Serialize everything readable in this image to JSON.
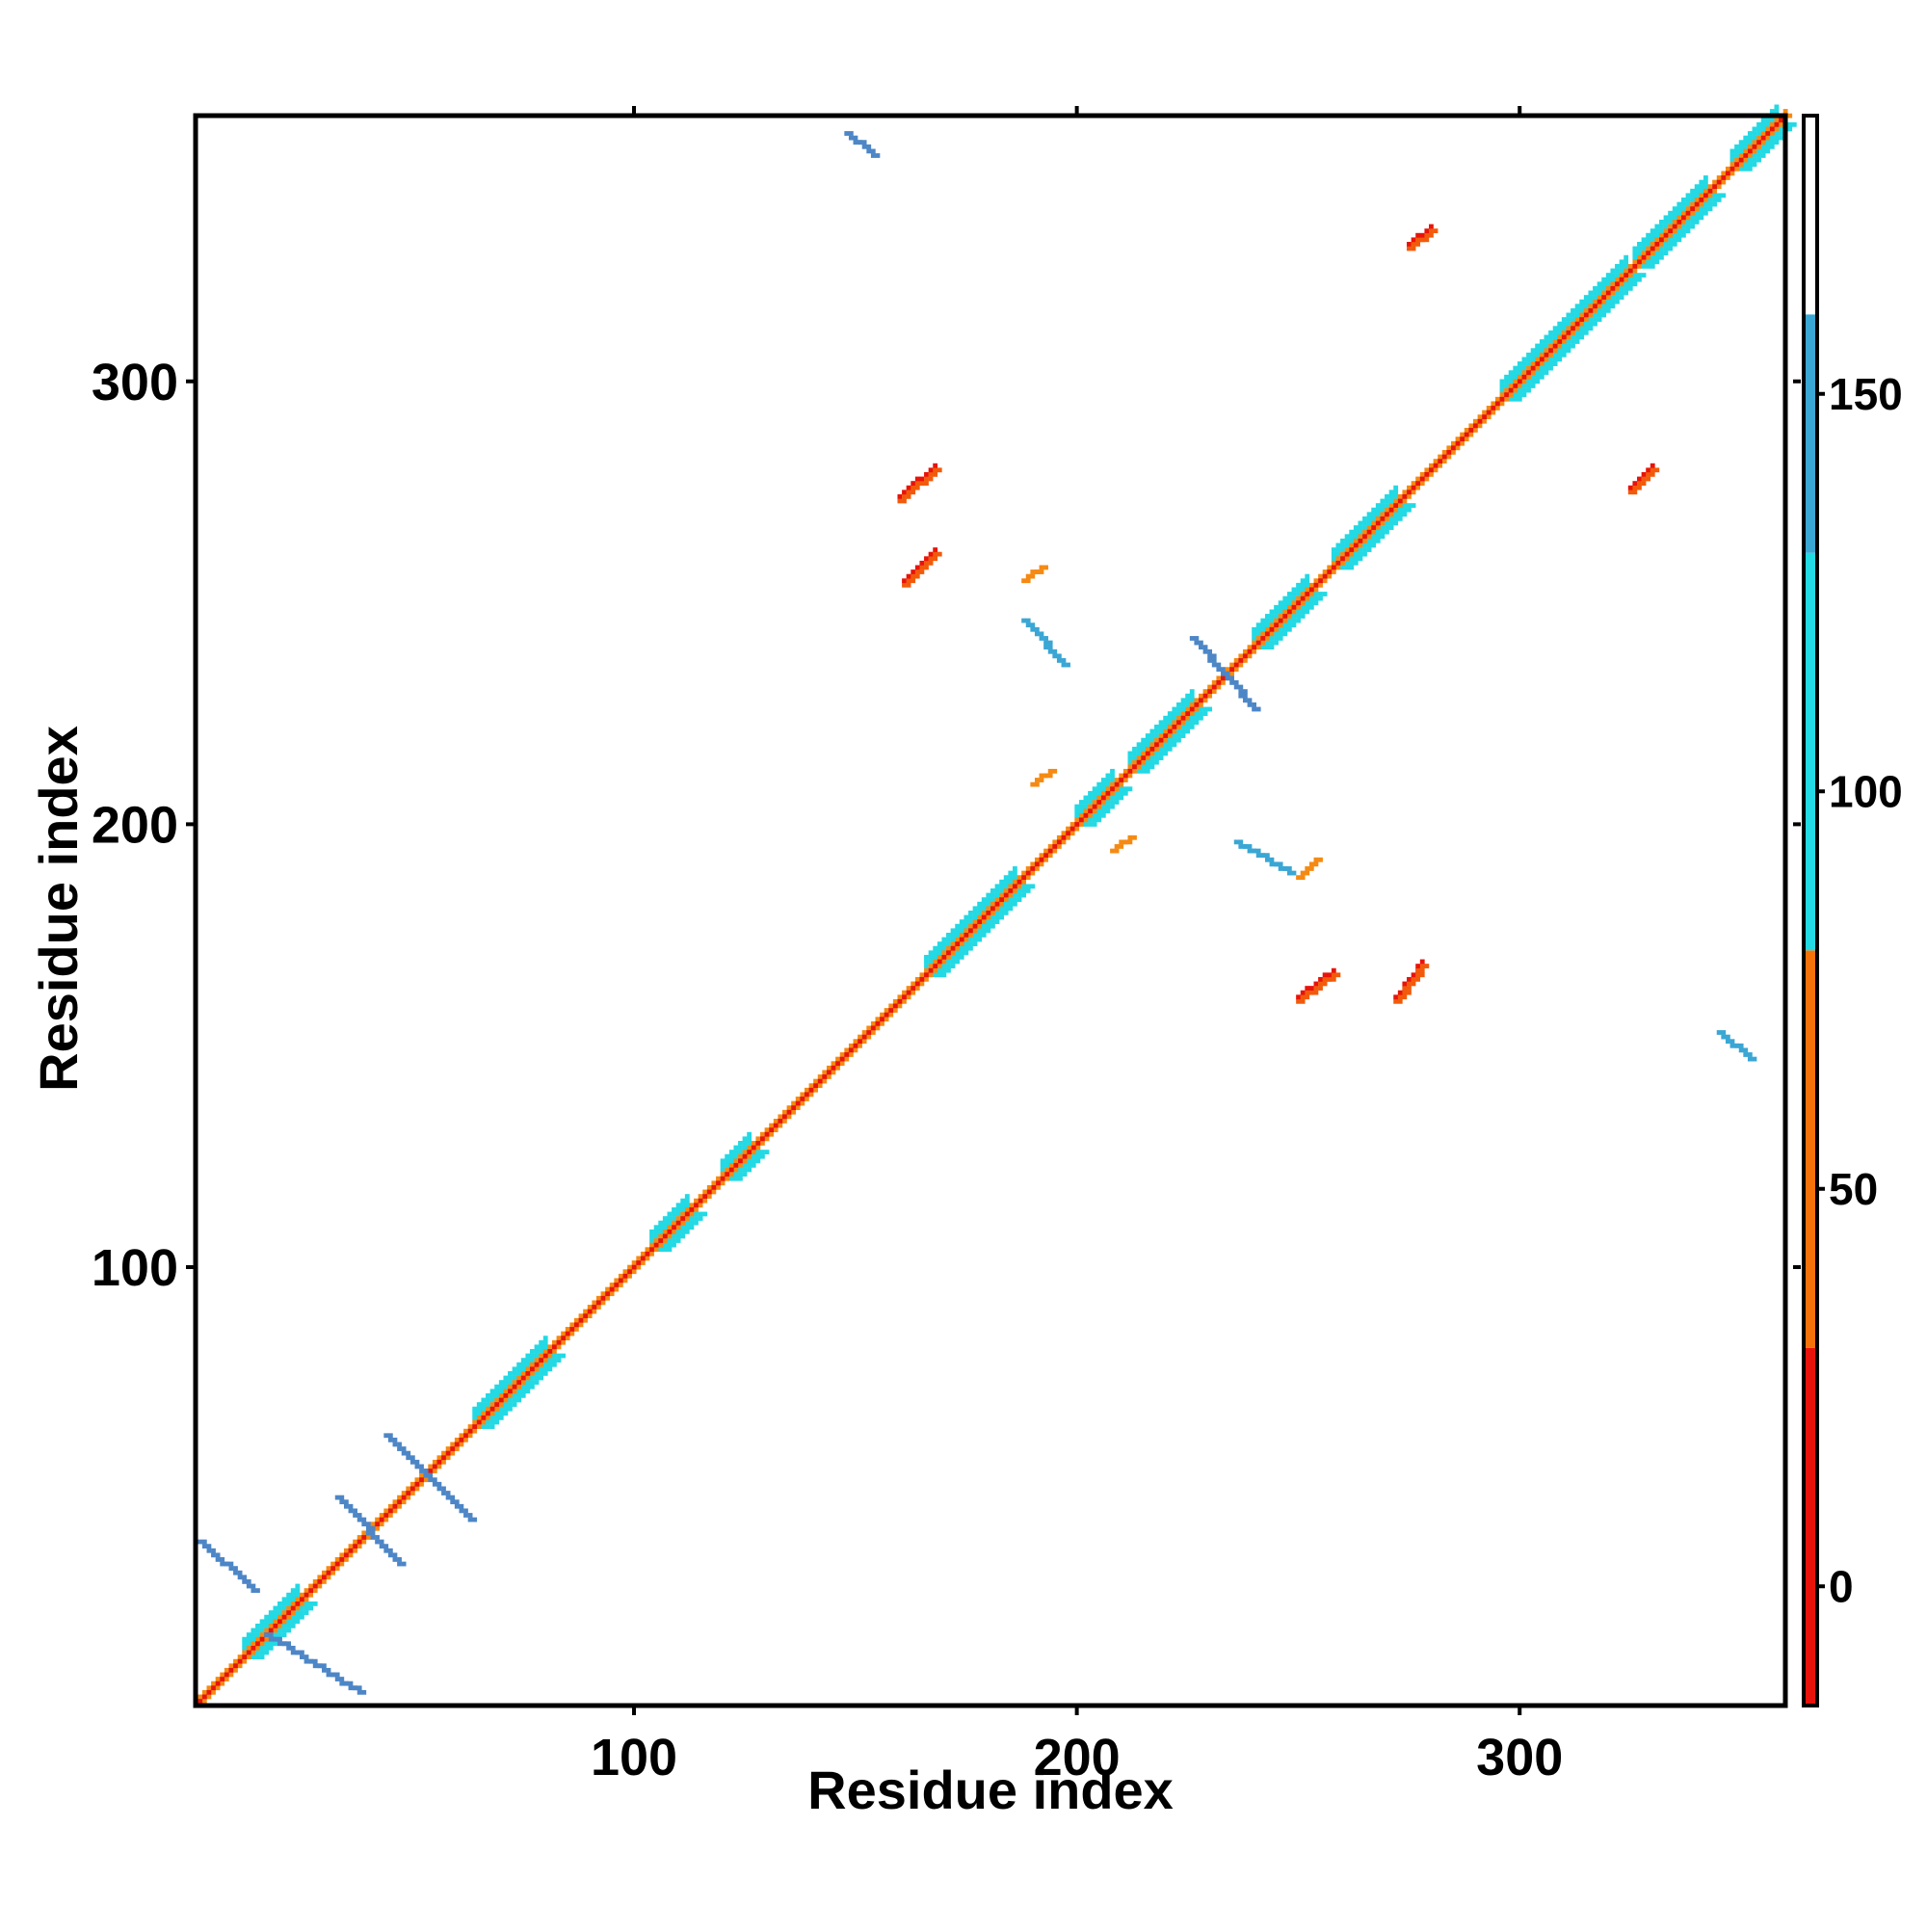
{
  "chart_data": {
    "type": "heatmap",
    "title": "",
    "xlabel": "Residue index",
    "ylabel": "Residue index",
    "xlim": [
      1,
      360
    ],
    "ylim": [
      1,
      360
    ],
    "x_ticks": [
      100,
      200,
      300
    ],
    "y_ticks": [
      100,
      200,
      300
    ],
    "grid": false,
    "colorbar": {
      "range": [
        -15,
        185
      ],
      "ticks": [
        0,
        50,
        100,
        150
      ],
      "bands": [
        {
          "from": -15,
          "to": 30,
          "color": "#e8130a"
        },
        {
          "from": 30,
          "to": 80,
          "color": "#f5720a"
        },
        {
          "from": 80,
          "to": 130,
          "color": "#22d9e4"
        },
        {
          "from": 130,
          "to": 160,
          "color": "#3aa6d4"
        },
        {
          "from": 160,
          "to": 185,
          "color": "#ffffff"
        }
      ]
    },
    "color_scale": {
      "red": "#e8130a",
      "orange_red": "#f25a0a",
      "orange": "#f58a12",
      "cyan": "#22d9e4",
      "sky": "#3aa6d4",
      "steel": "#4d86c6"
    },
    "diagonal": {
      "from": 1,
      "to": 360
    },
    "contact_segments": [
      {
        "x1": 2,
        "y1": 38,
        "x2": 14,
        "y2": 27,
        "class": "steel"
      },
      {
        "x1": 17,
        "y1": 17,
        "x2": 38,
        "y2": 4,
        "class": "steel"
      },
      {
        "x1": 44,
        "y1": 62,
        "x2": 63,
        "y2": 43,
        "class": "steel"
      },
      {
        "x1": 33,
        "y1": 48,
        "x2": 47,
        "y2": 33,
        "class": "steel"
      },
      {
        "x1": 148,
        "y1": 356,
        "x2": 154,
        "y2": 351,
        "class": "steel"
      },
      {
        "x1": 226,
        "y1": 242,
        "x2": 240,
        "y2": 226,
        "class": "steel"
      },
      {
        "x1": 188,
        "y1": 246,
        "x2": 197,
        "y2": 236,
        "class": "sky"
      },
      {
        "x1": 236,
        "y1": 196,
        "x2": 248,
        "y2": 189,
        "class": "sky"
      },
      {
        "x1": 345,
        "y1": 153,
        "x2": 352,
        "y2": 147,
        "class": "sky"
      },
      {
        "x1": 160,
        "y1": 273,
        "x2": 168,
        "y2": 280,
        "class": "orange_red"
      },
      {
        "x1": 161,
        "y1": 254,
        "x2": 168,
        "y2": 261,
        "class": "orange_red"
      },
      {
        "x1": 275,
        "y1": 330,
        "x2": 280,
        "y2": 334,
        "class": "orange_red"
      },
      {
        "x1": 325,
        "y1": 275,
        "x2": 330,
        "y2": 280,
        "class": "orange_red"
      },
      {
        "x1": 250,
        "y1": 160,
        "x2": 258,
        "y2": 166,
        "class": "orange_red"
      },
      {
        "x1": 272,
        "y1": 160,
        "x2": 278,
        "y2": 168,
        "class": "orange_red"
      },
      {
        "x1": 188,
        "y1": 255,
        "x2": 192,
        "y2": 258,
        "class": "orange"
      },
      {
        "x1": 190,
        "y1": 209,
        "x2": 194,
        "y2": 212,
        "class": "orange"
      },
      {
        "x1": 208,
        "y1": 194,
        "x2": 212,
        "y2": 197,
        "class": "orange"
      },
      {
        "x1": 250,
        "y1": 188,
        "x2": 254,
        "y2": 192,
        "class": "orange"
      }
    ]
  }
}
